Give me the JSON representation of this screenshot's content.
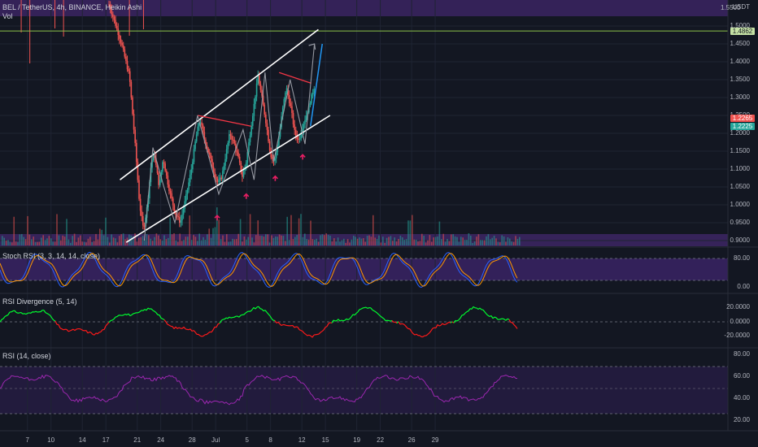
{
  "header": {
    "symbol": "BEL / TetherUS, 4h, BINANCE, Heikin Ashi",
    "volume_label": "Vol",
    "currency": "USDT"
  },
  "indicators": {
    "stoch_rsi": "Stoch RSI (3, 3, 14, 14, close)",
    "rsi_divergence": "RSI Divergence (5, 14)",
    "rsi": "RSI (14, close)"
  },
  "price_axis": [
    "1.5000",
    "1.4500",
    "1.4000",
    "1.3500",
    "1.3000",
    "1.2500",
    "1.2000",
    "1.1500",
    "1.1000",
    "1.0500",
    "1.0000",
    "0.9500",
    "0.9000"
  ],
  "price_axis_top": "1.5500",
  "price_tags": {
    "resistance": "1.4862",
    "last": "1.2265",
    "close": "1.2225"
  },
  "stoch_axis": [
    "80.00",
    "0.00"
  ],
  "div_axis": [
    "20.0000",
    "0.0000",
    "-20.0000"
  ],
  "rsi_axis": [
    "80.00",
    "60.00",
    "40.00",
    "20.00"
  ],
  "x_labels": [
    "7",
    "10",
    "14",
    "17",
    "21",
    "24",
    "28",
    "Jul",
    "5",
    "8",
    "12",
    "15",
    "19",
    "22",
    "26",
    "29"
  ],
  "colors": {
    "up": "#26a69a",
    "down": "#ef5350",
    "channel": "#ffffff",
    "swing": "#9598a1",
    "divergence": "#f23645",
    "arrow": "#e91e63",
    "projection": "#2196f3",
    "green": "#00ff2f",
    "red": "#ff1a1a",
    "rsi_line": "#9c27b0",
    "band": "#5b2ea0"
  },
  "chart_data": {
    "type": "line",
    "title": "BEL / TetherUS, 4h, BINANCE, Heikin Ashi",
    "xlabel": "",
    "ylabel": "",
    "ylim": [
      0.89,
      1.56
    ],
    "price_path_days": [
      17.4,
      18.0,
      19.0,
      20.0,
      20.8,
      21.3,
      21.8,
      22.3,
      22.8,
      23.2,
      23.8,
      24.3,
      25.0,
      25.8,
      26.5,
      27.2,
      27.9,
      28.5,
      29.0,
      29.6,
      30.2,
      30.8,
      31.3,
      31.8,
      32.3,
      32.8,
      33.4,
      33.9,
      34.4,
      34.9,
      35.4,
      35.9,
      36.4,
      36.9,
      37.5,
      38.0,
      38.5,
      39.0,
      39.5,
      40.0,
      40.6,
      41.1,
      41.6,
      42.1,
      42.7,
      43.2,
      43.7
    ],
    "price_path": [
      1.56,
      1.52,
      1.45,
      1.36,
      1.15,
      1.0,
      0.93,
      1.0,
      1.12,
      1.14,
      1.05,
      1.13,
      1.05,
      0.98,
      0.95,
      1.02,
      1.1,
      1.19,
      1.24,
      1.18,
      1.14,
      1.09,
      1.06,
      1.08,
      1.14,
      1.2,
      1.17,
      1.13,
      1.08,
      1.12,
      1.2,
      1.28,
      1.36,
      1.3,
      1.22,
      1.14,
      1.12,
      1.18,
      1.26,
      1.33,
      1.27,
      1.2,
      1.18,
      1.22,
      1.26,
      1.3,
      1.34
    ],
    "x_tick_days": {
      "7": 7,
      "10": 10,
      "14": 14,
      "17": 17,
      "21": 21,
      "24": 24,
      "28": 28,
      "Jul": 31,
      "5": 35,
      "8": 38,
      "12": 42,
      "15": 45,
      "19": 49,
      "22": 52,
      "26": 56,
      "29": 59
    },
    "annotations": {
      "channel_upper": [
        [
          18.8,
          1.07
        ],
        [
          44.1,
          1.49
        ]
      ],
      "channel_lower": [
        [
          19.6,
          0.895
        ],
        [
          45.6,
          1.25
        ]
      ],
      "resistance": 1.4862,
      "divergence_1": [
        [
          28.7,
          1.25
        ],
        [
          35.5,
          1.22
        ]
      ],
      "divergence_2": [
        [
          39.1,
          1.37
        ],
        [
          43.2,
          1.34
        ]
      ],
      "projection": [
        [
          43.1,
          1.22
        ],
        [
          44.6,
          1.45
        ]
      ],
      "swing_path": [
        [
          21.9,
          0.9
        ],
        [
          23.0,
          1.16
        ],
        [
          24.4,
          1.05
        ],
        [
          25.8,
          0.95
        ],
        [
          28.7,
          1.25
        ],
        [
          31.4,
          1.03
        ],
        [
          34.5,
          1.21
        ],
        [
          35.9,
          1.07
        ],
        [
          37.3,
          1.37
        ],
        [
          38.4,
          1.12
        ],
        [
          40.5,
          1.35
        ],
        [
          42.4,
          1.17
        ],
        [
          43.6,
          1.45
        ]
      ],
      "markers": [
        [
          31.2,
          0.97
        ],
        [
          34.9,
          1.03
        ],
        [
          38.6,
          1.08
        ],
        [
          42.1,
          1.14
        ]
      ]
    }
  }
}
